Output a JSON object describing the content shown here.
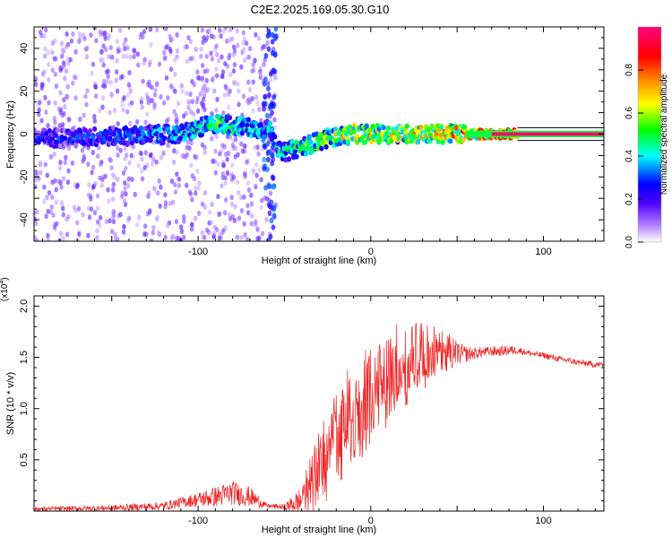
{
  "figure": {
    "title": "C2E2.2025.169.05.30.G10"
  },
  "chart_data": [
    {
      "type": "heatmap",
      "title": "C2E2.2025.169.05.30.G10",
      "xlabel": "Height of straight line (km)",
      "ylabel": "Frequency (Hz)",
      "xlim": [
        -195,
        135
      ],
      "ylim": [
        -50,
        50
      ],
      "x_ticks": [
        -100,
        0,
        100
      ],
      "y_ticks": [
        -40,
        -20,
        0,
        20,
        40
      ],
      "colorbar": {
        "label": "Normalized spectral amplitude",
        "range": [
          0,
          1
        ],
        "ticks": [
          "0.0",
          "0.2",
          "0.4",
          "0.6",
          "0.8"
        ],
        "colormap": [
          "#ffffff",
          "#6000ff",
          "#0000ff",
          "#00ffff",
          "#00ff00",
          "#ffff00",
          "#ff8000",
          "#ff0000",
          "#ff0080"
        ]
      },
      "ridge": {
        "x": [
          -190,
          -150,
          -110,
          -90,
          -70,
          -58,
          -52,
          -40,
          -25,
          -10,
          0,
          20,
          40,
          55,
          85,
          135
        ],
        "freq": [
          -2,
          -1,
          0,
          5,
          3,
          2,
          -9,
          -6,
          -2,
          0,
          0,
          0,
          0,
          0,
          0,
          0
        ],
        "amplitude": [
          0.3,
          0.35,
          0.45,
          0.55,
          0.5,
          0.45,
          0.5,
          0.55,
          0.65,
          0.75,
          0.75,
          0.75,
          0.78,
          0.85,
          0.9,
          0.95
        ]
      },
      "scatter_band": {
        "x_range": [
          -195,
          -55
        ],
        "freq_range": [
          -50,
          50
        ],
        "amplitude": 0.12
      }
    },
    {
      "type": "line",
      "xlabel": "Height of straight line (km)",
      "ylabel": "SNR (10 * v/v)",
      "y_multiplier": "(x10⁴)",
      "y_multiplier_base": "(x10",
      "y_multiplier_exp": "4",
      "xlim": [
        -195,
        135
      ],
      "ylim": [
        0,
        2.1
      ],
      "x_ticks": [
        -100,
        0,
        100
      ],
      "y_ticks": [
        0.5,
        1.0,
        1.5,
        2.0
      ],
      "series": [
        {
          "color": "#ee2222",
          "x": [
            -195,
            -150,
            -120,
            -105,
            -90,
            -80,
            -70,
            -60,
            -50,
            -40,
            -35,
            -30,
            -25,
            -20,
            -15,
            -10,
            -5,
            0,
            5,
            10,
            15,
            20,
            25,
            30,
            35,
            40,
            45,
            50,
            55,
            60,
            65,
            70,
            75,
            80,
            85,
            90,
            95,
            100,
            105,
            110,
            115,
            120,
            125,
            130,
            135
          ],
          "baseline": [
            0.02,
            0.03,
            0.05,
            0.1,
            0.14,
            0.18,
            0.14,
            0.05,
            0.04,
            0.1,
            0.25,
            0.4,
            0.55,
            0.7,
            0.85,
            0.95,
            1.05,
            1.15,
            1.25,
            1.3,
            1.38,
            1.43,
            1.48,
            1.52,
            1.54,
            1.55,
            1.55,
            1.54,
            1.53,
            1.54,
            1.55,
            1.56,
            1.56,
            1.57,
            1.57,
            1.55,
            1.53,
            1.52,
            1.5,
            1.48,
            1.47,
            1.45,
            1.44,
            1.43,
            1.43
          ],
          "noise": [
            0.02,
            0.03,
            0.04,
            0.06,
            0.1,
            0.12,
            0.1,
            0.02,
            0.03,
            0.15,
            0.3,
            0.4,
            0.45,
            0.5,
            0.5,
            0.5,
            0.55,
            0.5,
            0.5,
            0.5,
            0.45,
            0.45,
            0.4,
            0.35,
            0.3,
            0.25,
            0.2,
            0.12,
            0.08,
            0.06,
            0.05,
            0.05,
            0.05,
            0.05,
            0.04,
            0.03,
            0.03,
            0.03,
            0.03,
            0.03,
            0.03,
            0.03,
            0.03,
            0.03,
            0.03
          ]
        }
      ]
    }
  ]
}
